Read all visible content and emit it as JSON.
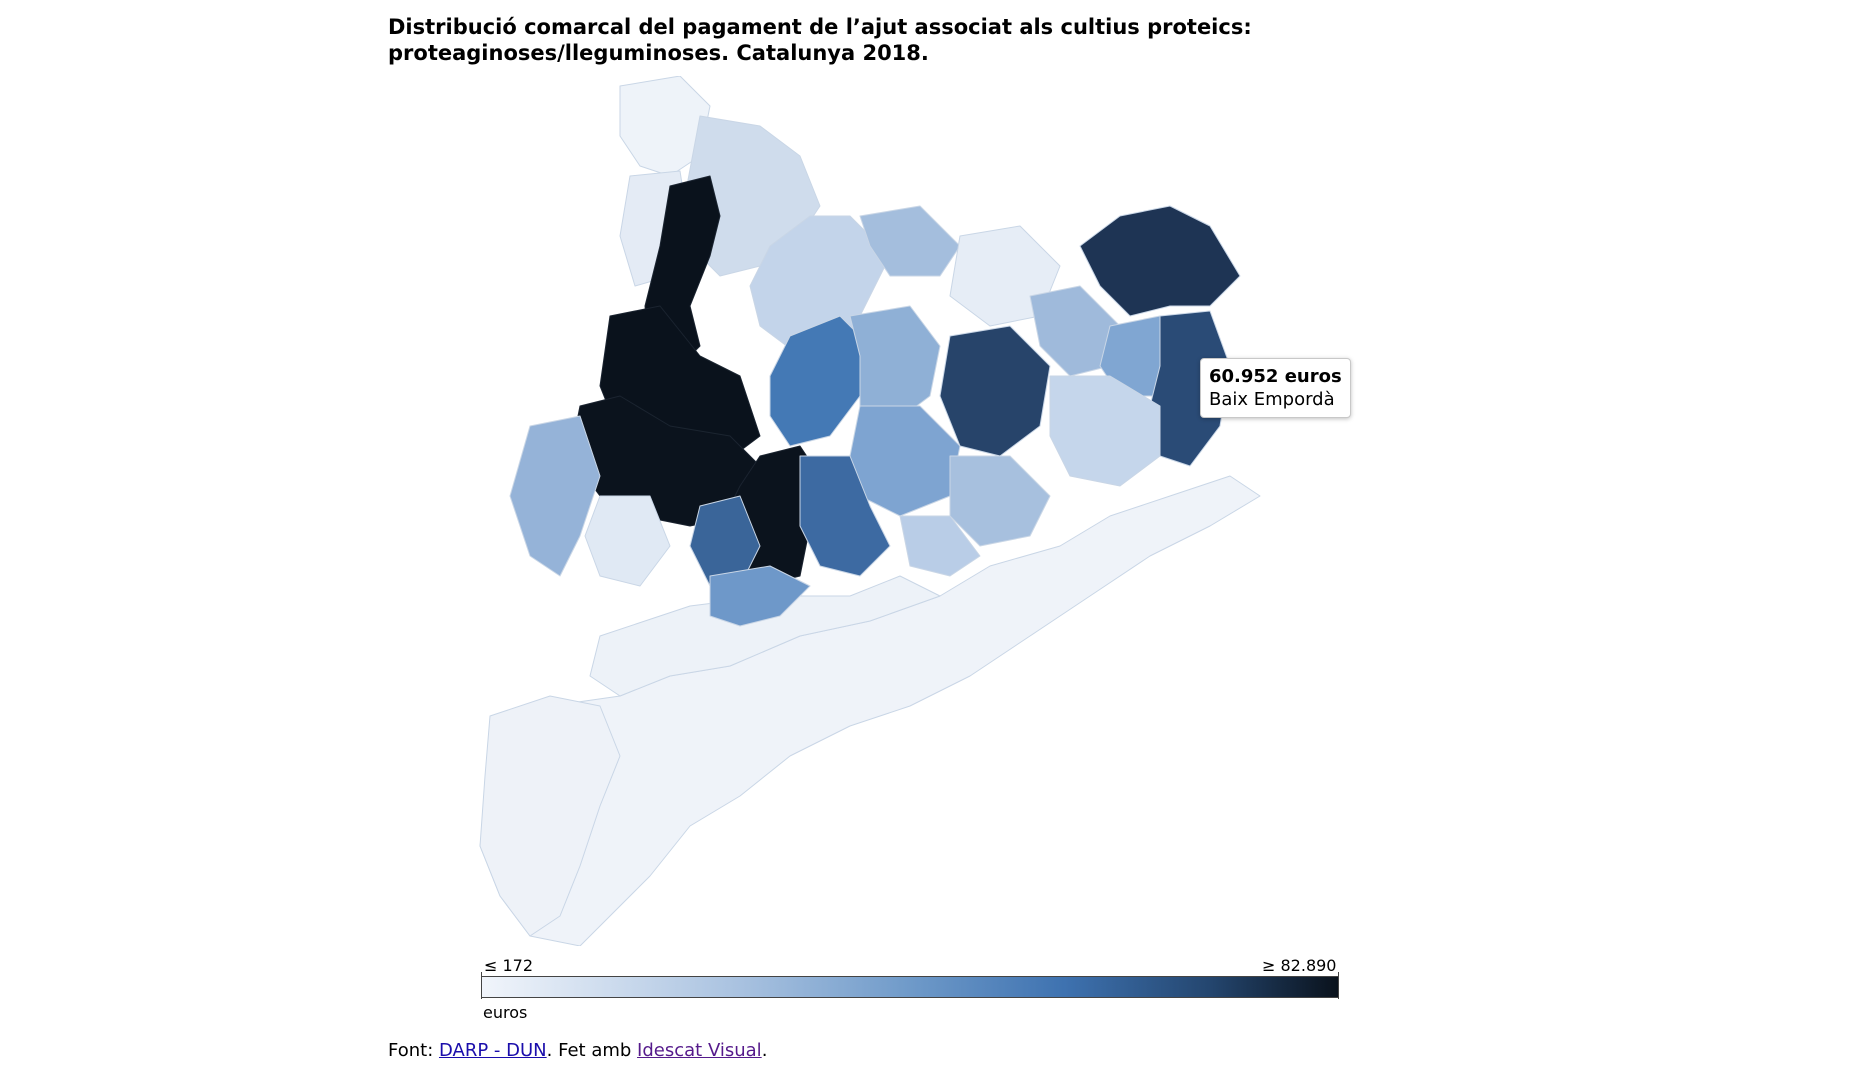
{
  "title": {
    "line1": "Distribució comarcal del pagament de l’ajut associat als cultius proteics:",
    "line2": "proteaginoses/lleguminoses. Catalunya 2018."
  },
  "tooltip": {
    "value": "60.952 euros",
    "region": "Baix Empordà"
  },
  "legend": {
    "min_label": "≤ 172",
    "max_label": "≥ 82.890",
    "unit": "euros",
    "min_value": 172,
    "max_value": 82890,
    "color_low": "#f1f5fb",
    "color_high": "#0a121c"
  },
  "source": {
    "prefix": "Font: ",
    "link1": "DARP - DUN",
    "middle": ". Fet amb ",
    "link2": "Idescat Visual",
    "suffix": "."
  },
  "colors": {
    "darkest": "#0a121c",
    "dark": "#1d3553",
    "mid": "#4677b3",
    "light": "#a5bfdd",
    "lightest": "#eef3f9"
  }
}
